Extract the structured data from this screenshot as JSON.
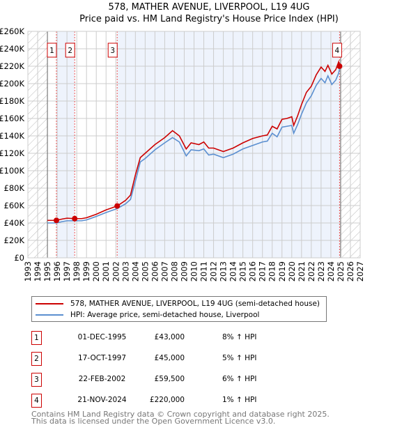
{
  "title": "578, MATHER AVENUE, LIVERPOOL, L19 4UG",
  "subtitle": "Price paid vs. HM Land Registry's House Price Index (HPI)",
  "chart_data": {
    "type": "line",
    "title": "578, MATHER AVENUE, LIVERPOOL, L19 4UG — Price paid vs. HM Land Registry's House Price Index (HPI)",
    "xlim": [
      1993,
      2027
    ],
    "ylim": [
      0,
      260000
    ],
    "x_ticks": [
      "1993",
      "1994",
      "1995",
      "1996",
      "1997",
      "1998",
      "1999",
      "2000",
      "2001",
      "2002",
      "2003",
      "2004",
      "2005",
      "2006",
      "2007",
      "2008",
      "2009",
      "2010",
      "2011",
      "2012",
      "2013",
      "2014",
      "2015",
      "2016",
      "2017",
      "2018",
      "2019",
      "2020",
      "2021",
      "2022",
      "2023",
      "2024",
      "2025",
      "2026",
      "2027"
    ],
    "y_ticks": [
      "£0",
      "£20K",
      "£40K",
      "£60K",
      "£80K",
      "£100K",
      "£120K",
      "£140K",
      "£160K",
      "£180K",
      "£200K",
      "£220K",
      "£240K",
      "£260K"
    ],
    "grid": true,
    "series": [
      {
        "name": "578, MATHER AVENUE, LIVERPOOL, L19 4UG (semi-detached house)",
        "color": "#cc0000",
        "x": [
          1995,
          1995.92,
          1996.5,
          1997,
          1997.79,
          1998.5,
          1999,
          2000,
          2001,
          2002.14,
          2003,
          2003.5,
          2004,
          2004.5,
          2005,
          2006,
          2007,
          2007.8,
          2008.5,
          2009.2,
          2009.7,
          2010.5,
          2011,
          2011.5,
          2012,
          2013,
          2013.5,
          2014,
          2015,
          2016,
          2017,
          2017.5,
          2018,
          2018.5,
          2019,
          2019.5,
          2020,
          2020.2,
          2020.6,
          2021,
          2021.5,
          2022,
          2022.5,
          2023,
          2023.4,
          2023.7,
          2024.1,
          2024.5,
          2024.8,
          2024.89,
          2025.0
        ],
        "y": [
          43000,
          43000,
          44500,
          45500,
          45000,
          45000,
          46000,
          50000,
          55000,
          59500,
          66000,
          72000,
          95000,
          115000,
          120000,
          130000,
          138000,
          146000,
          140000,
          125000,
          132000,
          130000,
          133000,
          126000,
          126000,
          122000,
          124000,
          126000,
          132000,
          137000,
          140000,
          141000,
          151000,
          148000,
          159000,
          160000,
          162000,
          152000,
          163000,
          176000,
          190000,
          197000,
          210000,
          219000,
          214000,
          221000,
          211000,
          216000,
          225000,
          220000,
          221000
        ]
      },
      {
        "name": "HPI: Average price, semi-detached house, Liverpool",
        "color": "#5b8fd0",
        "x": [
          1995,
          1995.92,
          1996.5,
          1997,
          1997.79,
          1998.5,
          1999,
          2000,
          2001,
          2002.14,
          2003,
          2003.5,
          2004,
          2004.5,
          2005,
          2006,
          2007,
          2007.8,
          2008.5,
          2009.2,
          2009.7,
          2010.5,
          2011,
          2011.5,
          2012,
          2013,
          2013.5,
          2014,
          2015,
          2016,
          2017,
          2017.5,
          2018,
          2018.5,
          2019,
          2019.5,
          2020,
          2020.2,
          2020.6,
          2021,
          2021.5,
          2022,
          2022.5,
          2023,
          2023.4,
          2023.7,
          2024.1,
          2024.5,
          2024.8,
          2024.89,
          2025.0
        ],
        "y": [
          40000,
          40000,
          41500,
          42500,
          42500,
          42500,
          43500,
          47500,
          52000,
          56500,
          62000,
          67000,
          88000,
          110000,
          114000,
          124000,
          132000,
          138000,
          133000,
          117000,
          124000,
          123000,
          125000,
          118000,
          119000,
          115000,
          117000,
          119000,
          125000,
          129000,
          133000,
          134000,
          143000,
          139000,
          150000,
          151000,
          152000,
          143000,
          153000,
          165000,
          178000,
          186000,
          198000,
          206000,
          201000,
          209000,
          199000,
          204000,
          212000,
          217000,
          218000
        ]
      }
    ],
    "sales": [
      {
        "label": "1",
        "x": 1995.92,
        "price": 43000
      },
      {
        "label": "2",
        "x": 1997.79,
        "price": 45000
      },
      {
        "label": "3",
        "x": 2002.14,
        "price": 59500
      },
      {
        "label": "4",
        "x": 2024.89,
        "price": 220000
      }
    ]
  },
  "legend": [
    {
      "label": "578, MATHER AVENUE, LIVERPOOL, L19 4UG (semi-detached house)",
      "color": "#cc0000"
    },
    {
      "label": "HPI: Average price, semi-detached house, Liverpool",
      "color": "#5b8fd0"
    }
  ],
  "transactions": [
    {
      "num": "1",
      "date": "01-DEC-1995",
      "price": "£43,000",
      "hpi": "8% ↑ HPI"
    },
    {
      "num": "2",
      "date": "17-OCT-1997",
      "price": "£45,000",
      "hpi": "5% ↑ HPI"
    },
    {
      "num": "3",
      "date": "22-FEB-2002",
      "price": "£59,500",
      "hpi": "6% ↑ HPI"
    },
    {
      "num": "4",
      "date": "21-NOV-2024",
      "price": "£220,000",
      "hpi": "1% ↑ HPI"
    }
  ],
  "footer": {
    "line1": "Contains HM Land Registry data © Crown copyright and database right 2025.",
    "line2": "This data is licensed under the Open Government Licence v3.0."
  }
}
